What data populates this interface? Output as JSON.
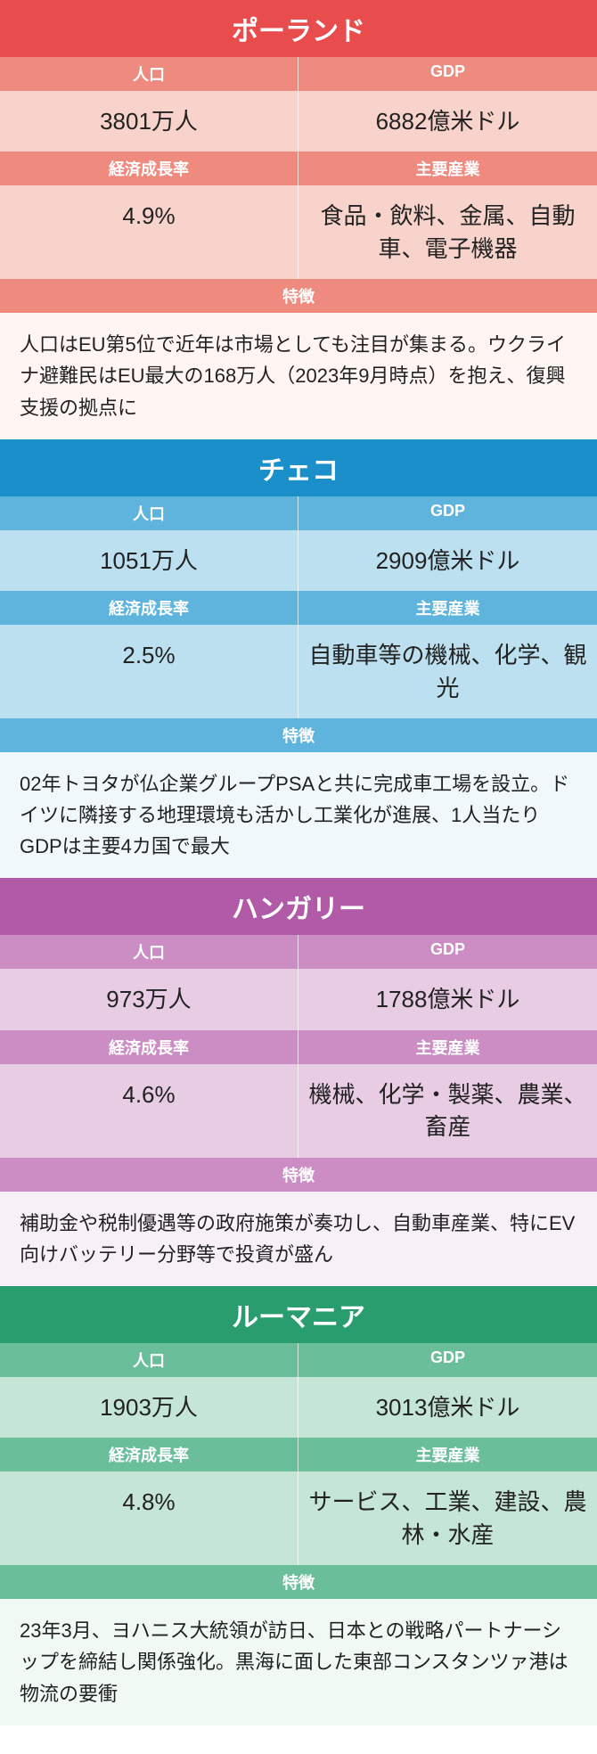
{
  "labels": {
    "population": "人口",
    "gdp": "GDP",
    "growth": "経済成長率",
    "industries": "主要産業",
    "features": "特徴"
  },
  "countries": [
    {
      "name": "ポーランド",
      "population": "3801万人",
      "gdp": "6882億米ドル",
      "growth": "4.9%",
      "industries": "食品・飲料、金属、自動車、電子機器",
      "features": "人口はEU第5位で近年は市場としても注目が集まる。ウクライナ避難民はEU最大の168万人（2023年9月時点）を抱え、復興支援の拠点に",
      "colors": {
        "title": "#e84c4c",
        "label": "#ef8a7f",
        "value": "#f8d3cc",
        "feat": "#fff5f2"
      }
    },
    {
      "name": "チェコ",
      "population": "1051万人",
      "gdp": "2909億米ドル",
      "growth": "2.5%",
      "industries": "自動車等の機械、化学、観光",
      "features": "02年トヨタが仏企業グループPSAと共に完成車工場を設立。ドイツに隣接する地理環境も活かし工業化が進展、1人当たりGDPは主要4カ国で最大",
      "colors": {
        "title": "#1a8fc9",
        "label": "#5fb4dd",
        "value": "#bce0ef",
        "feat": "#f0f8fc"
      }
    },
    {
      "name": "ハンガリー",
      "population": "973万人",
      "gdp": "1788億米ドル",
      "growth": "4.6%",
      "industries": "機械、化学・製薬、農業、畜産",
      "features": "補助金や税制優遇等の政府施策が奏功し、自動車産業、特にEV向けバッテリー分野等で投資が盛ん",
      "colors": {
        "title": "#b05aa8",
        "label": "#cb8dc4",
        "value": "#e8cce4",
        "feat": "#f8f0f7"
      }
    },
    {
      "name": "ルーマニア",
      "population": "1903万人",
      "gdp": "3013億米ドル",
      "growth": "4.8%",
      "industries": "サービス、工業、建設、農林・水産",
      "features": "23年3月、ヨハニス大統領が訪日、日本との戦略パートナーシップを締結し関係強化。黒海に面した東部コンスタンツァ港は物流の要衝",
      "colors": {
        "title": "#2a9d6f",
        "label": "#6abf9a",
        "value": "#c5e5d6",
        "feat": "#f0f9f4"
      }
    }
  ]
}
